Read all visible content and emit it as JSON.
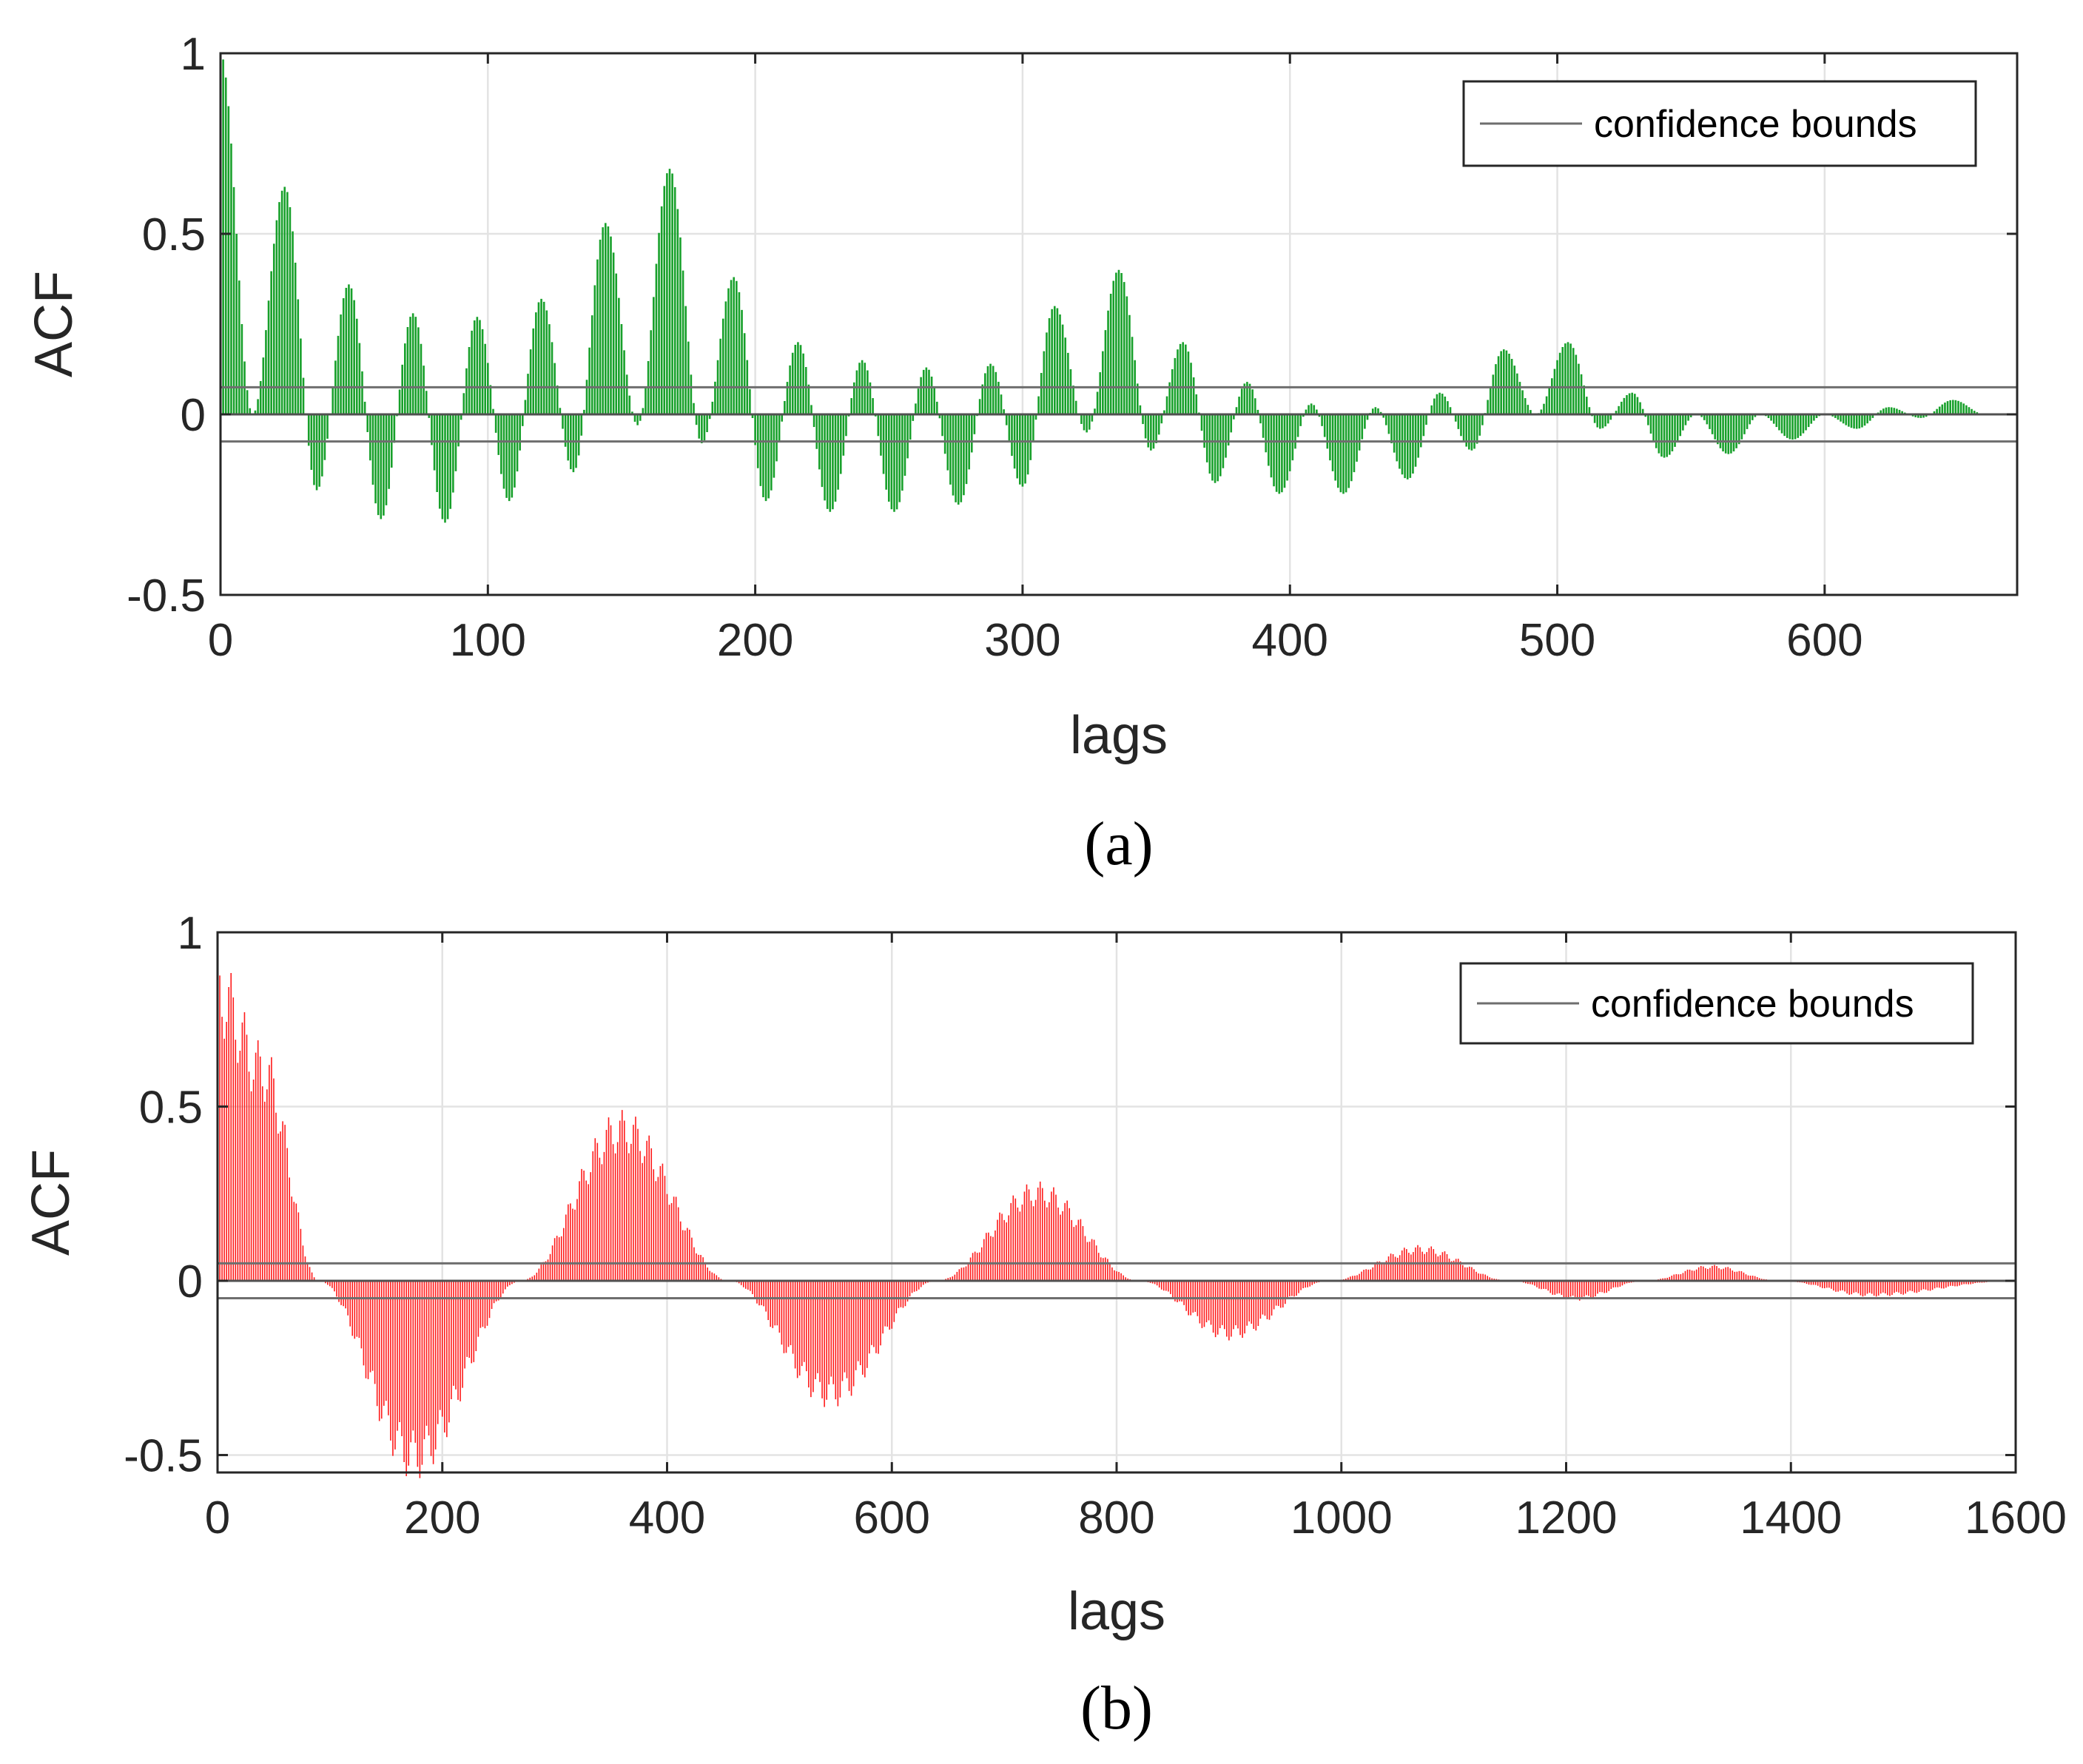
{
  "chart_data": [
    {
      "type": "bar",
      "panel": "(a)",
      "caption": "(a)",
      "xlabel": "lags",
      "ylabel": "ACF",
      "xlim": [
        0,
        672
      ],
      "ylim": [
        -0.5,
        1
      ],
      "xticks": [
        "0",
        "100",
        "200",
        "300",
        "400",
        "500",
        "600"
      ],
      "xtick_values": [
        0,
        100,
        200,
        300,
        400,
        500,
        600
      ],
      "yticks": [
        "-0.5",
        "0",
        "0.5",
        "1"
      ],
      "ytick_values": [
        -0.5,
        0,
        0.5,
        1
      ],
      "grid": true,
      "legend": {
        "label": "confidence bounds",
        "position": "top-right"
      },
      "confidence_bound": 0.075,
      "color": "#17a02a",
      "period": 24,
      "peaks": [
        {
          "lag": 0,
          "acf": 1.0
        },
        {
          "lag": 24,
          "acf": 0.63
        },
        {
          "lag": 48,
          "acf": 0.36
        },
        {
          "lag": 72,
          "acf": 0.28
        },
        {
          "lag": 96,
          "acf": 0.27
        },
        {
          "lag": 120,
          "acf": 0.32
        },
        {
          "lag": 144,
          "acf": 0.53
        },
        {
          "lag": 168,
          "acf": 0.68
        },
        {
          "lag": 192,
          "acf": 0.38
        },
        {
          "lag": 216,
          "acf": 0.2
        },
        {
          "lag": 240,
          "acf": 0.15
        },
        {
          "lag": 264,
          "acf": 0.13
        },
        {
          "lag": 288,
          "acf": 0.14
        },
        {
          "lag": 312,
          "acf": 0.3
        },
        {
          "lag": 336,
          "acf": 0.4
        },
        {
          "lag": 360,
          "acf": 0.2
        },
        {
          "lag": 384,
          "acf": 0.09
        },
        {
          "lag": 408,
          "acf": 0.03
        },
        {
          "lag": 432,
          "acf": 0.02
        },
        {
          "lag": 456,
          "acf": 0.06
        },
        {
          "lag": 480,
          "acf": 0.18
        },
        {
          "lag": 504,
          "acf": 0.2
        },
        {
          "lag": 528,
          "acf": 0.06
        },
        {
          "lag": 552,
          "acf": 0.0
        },
        {
          "lag": 576,
          "acf": 0.0
        },
        {
          "lag": 600,
          "acf": 0.0
        },
        {
          "lag": 624,
          "acf": 0.02
        },
        {
          "lag": 648,
          "acf": 0.04
        }
      ],
      "troughs": [
        {
          "lag": 12,
          "acf": 0.0
        },
        {
          "lag": 36,
          "acf": -0.21
        },
        {
          "lag": 60,
          "acf": -0.29
        },
        {
          "lag": 84,
          "acf": -0.3
        },
        {
          "lag": 108,
          "acf": -0.24
        },
        {
          "lag": 132,
          "acf": -0.16
        },
        {
          "lag": 156,
          "acf": -0.03
        },
        {
          "lag": 180,
          "acf": -0.08
        },
        {
          "lag": 204,
          "acf": -0.24
        },
        {
          "lag": 228,
          "acf": -0.27
        },
        {
          "lag": 252,
          "acf": -0.27
        },
        {
          "lag": 276,
          "acf": -0.25
        },
        {
          "lag": 300,
          "acf": -0.2
        },
        {
          "lag": 324,
          "acf": -0.05
        },
        {
          "lag": 348,
          "acf": -0.1
        },
        {
          "lag": 372,
          "acf": -0.19
        },
        {
          "lag": 396,
          "acf": -0.22
        },
        {
          "lag": 420,
          "acf": -0.22
        },
        {
          "lag": 444,
          "acf": -0.18
        },
        {
          "lag": 468,
          "acf": -0.1
        },
        {
          "lag": 492,
          "acf": 0.0
        },
        {
          "lag": 516,
          "acf": -0.04
        },
        {
          "lag": 540,
          "acf": -0.12
        },
        {
          "lag": 564,
          "acf": -0.11
        },
        {
          "lag": 588,
          "acf": -0.07
        },
        {
          "lag": 612,
          "acf": -0.04
        },
        {
          "lag": 636,
          "acf": -0.01
        },
        {
          "lag": 660,
          "acf": 0.0
        }
      ]
    },
    {
      "type": "bar",
      "panel": "(b)",
      "caption": "(b)",
      "xlabel": "lags",
      "ylabel": "ACF",
      "xlim": [
        0,
        1600
      ],
      "ylim": [
        -0.55,
        1
      ],
      "xticks": [
        "0",
        "200",
        "400",
        "600",
        "800",
        "1000",
        "1200",
        "1400",
        "1600"
      ],
      "xtick_values": [
        0,
        200,
        400,
        600,
        800,
        1000,
        1200,
        1400,
        1600
      ],
      "yticks": [
        "-0.5",
        "0",
        "0.5",
        "1"
      ],
      "ytick_values": [
        -0.5,
        0,
        0.5,
        1
      ],
      "grid": true,
      "legend": {
        "label": "confidence bounds",
        "position": "top-right"
      },
      "confidence_bound": 0.05,
      "color": "#ff1a1a",
      "wave_period_lags": 365,
      "ripple_period_lags": 12,
      "anchors": [
        {
          "lag": 0,
          "acf": 0.82
        },
        {
          "lag": 40,
          "acf": 0.6
        },
        {
          "lag": 90,
          "acf": 0.0
        },
        {
          "lag": 175,
          "acf": -0.5
        },
        {
          "lag": 270,
          "acf": 0.0
        },
        {
          "lag": 360,
          "acf": 0.43
        },
        {
          "lag": 455,
          "acf": 0.0
        },
        {
          "lag": 545,
          "acf": -0.32
        },
        {
          "lag": 640,
          "acf": 0.0
        },
        {
          "lag": 730,
          "acf": 0.25
        },
        {
          "lag": 820,
          "acf": 0.0
        },
        {
          "lag": 900,
          "acf": -0.15
        },
        {
          "lag": 990,
          "acf": 0.0
        },
        {
          "lag": 1070,
          "acf": 0.09
        },
        {
          "lag": 1150,
          "acf": 0.0
        },
        {
          "lag": 1210,
          "acf": -0.05
        },
        {
          "lag": 1270,
          "acf": 0.0
        },
        {
          "lag": 1330,
          "acf": 0.04
        },
        {
          "lag": 1390,
          "acf": 0.0
        },
        {
          "lag": 1470,
          "acf": -0.04
        },
        {
          "lag": 1600,
          "acf": 0.0
        }
      ]
    }
  ]
}
